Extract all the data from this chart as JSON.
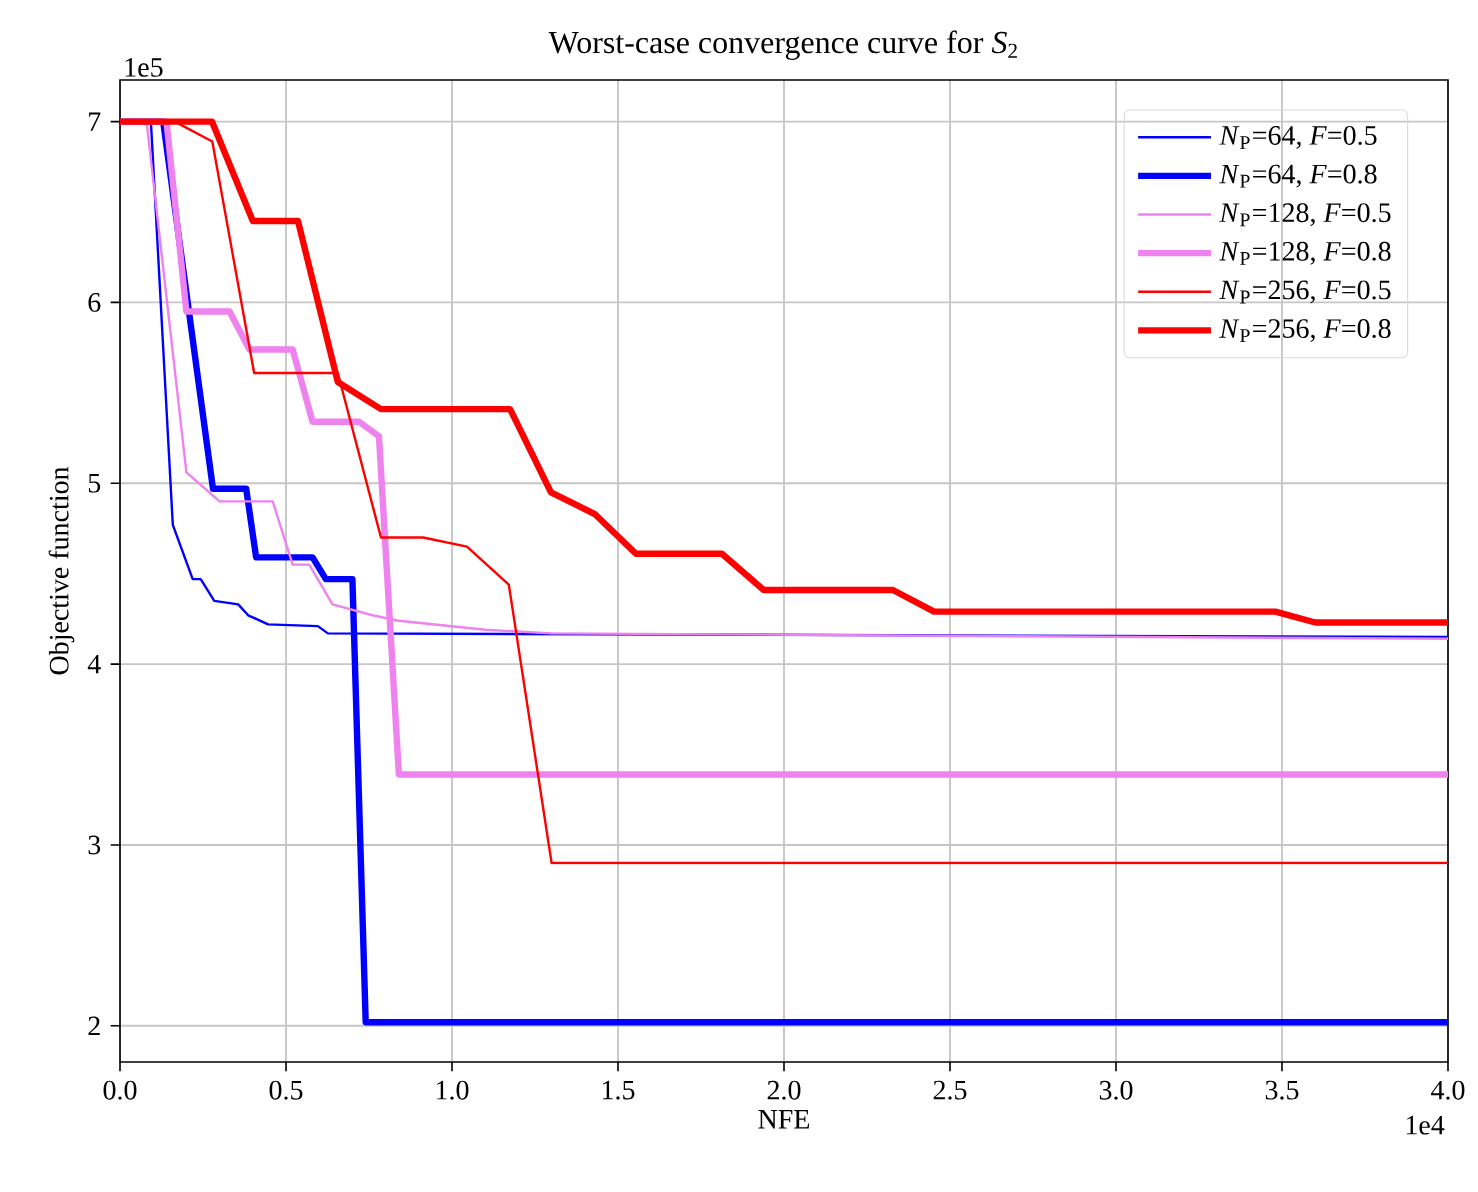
{
  "chart_data": {
    "type": "line",
    "title": "Worst-case convergence curve for *S*$_{2}$",
    "xlabel": "NFE",
    "ylabel": "Objective function",
    "xlim": [
      0,
      4
    ],
    "ylim": [
      1.8,
      7.23
    ],
    "xticks": [
      {
        "value": 0,
        "label": "0.0"
      },
      {
        "value": 0.5,
        "label": "0.5"
      },
      {
        "value": 1,
        "label": "1.0"
      },
      {
        "value": 1.5,
        "label": "1.5"
      },
      {
        "value": 2,
        "label": "2.0"
      },
      {
        "value": 2.5,
        "label": "2.5"
      },
      {
        "value": 3,
        "label": "3.0"
      },
      {
        "value": 3.5,
        "label": "3.5"
      },
      {
        "value": 4,
        "label": "4.0"
      }
    ],
    "yticks": [
      2,
      3,
      4,
      5,
      6,
      7
    ],
    "grid": true,
    "legend": "top right",
    "line_style": "solid",
    "annotations": [
      "1e5",
      "1e4"
    ],
    "series": [
      {
        "name": "*N*$_{P}$=64, *F*=0.5",
        "color": "#0000ff",
        "x": [
          0,
          0.093,
          0.159,
          0.219,
          0.243,
          0.284,
          0.356,
          0.386,
          0.446,
          0.596,
          0.626,
          4
        ],
        "values": [
          7,
          7,
          4.77,
          4.47,
          4.47,
          4.35,
          4.33,
          4.27,
          4.22,
          4.21,
          4.17,
          4.15
        ]
      },
      {
        "name": "*N*$_{P}$=64, *F*=0.8",
        "color": "#0000ff",
        "x": [
          0,
          0.13,
          0.28,
          0.38,
          0.41,
          0.58,
          0.62,
          0.7,
          0.74,
          4
        ],
        "values": [
          7,
          7,
          4.97,
          4.97,
          4.59,
          4.59,
          4.47,
          4.47,
          2.02,
          2.02
        ]
      },
      {
        "name": "*N*$_{P}$=128, *F*=0.5",
        "color": "#ee82ee",
        "x": [
          0,
          0.08,
          0.2,
          0.3,
          0.46,
          0.52,
          0.57,
          0.64,
          0.76,
          0.84,
          1.1,
          1.3,
          4
        ],
        "values": [
          7,
          7,
          5.06,
          4.9,
          4.9,
          4.55,
          4.55,
          4.33,
          4.27,
          4.24,
          4.19,
          4.17,
          4.14
        ]
      },
      {
        "name": "*N*$_{P}$=128, *F*=0.8",
        "color": "#ee82ee",
        "x": [
          0,
          0.14,
          0.2,
          0.33,
          0.39,
          0.52,
          0.58,
          0.72,
          0.78,
          0.84,
          4
        ],
        "values": [
          7,
          7,
          5.95,
          5.95,
          5.74,
          5.74,
          5.34,
          5.34,
          5.26,
          3.39,
          3.39
        ]
      },
      {
        "name": "*N*$_{P}$=256, *F*=0.5",
        "color": "#ff0000",
        "x": [
          0,
          0.165,
          0.278,
          0.404,
          0.656,
          0.786,
          0.913,
          1.045,
          1.171,
          1.3,
          4
        ],
        "values": [
          7,
          7,
          6.89,
          5.61,
          5.61,
          4.7,
          4.7,
          4.65,
          4.44,
          2.9,
          2.9
        ]
      },
      {
        "name": "*N*$_{P}$=256, *F*=0.8",
        "color": "#ff0000",
        "x": [
          0,
          0.277,
          0.4,
          0.536,
          0.656,
          0.786,
          1.175,
          1.298,
          1.43,
          1.554,
          1.813,
          1.939,
          2.328,
          2.452,
          3.48,
          3.6,
          4
        ],
        "values": [
          7,
          7,
          6.45,
          6.45,
          5.56,
          5.41,
          5.41,
          4.95,
          4.83,
          4.61,
          4.61,
          4.41,
          4.41,
          4.29,
          4.29,
          4.23,
          4.23
        ]
      }
    ]
  }
}
